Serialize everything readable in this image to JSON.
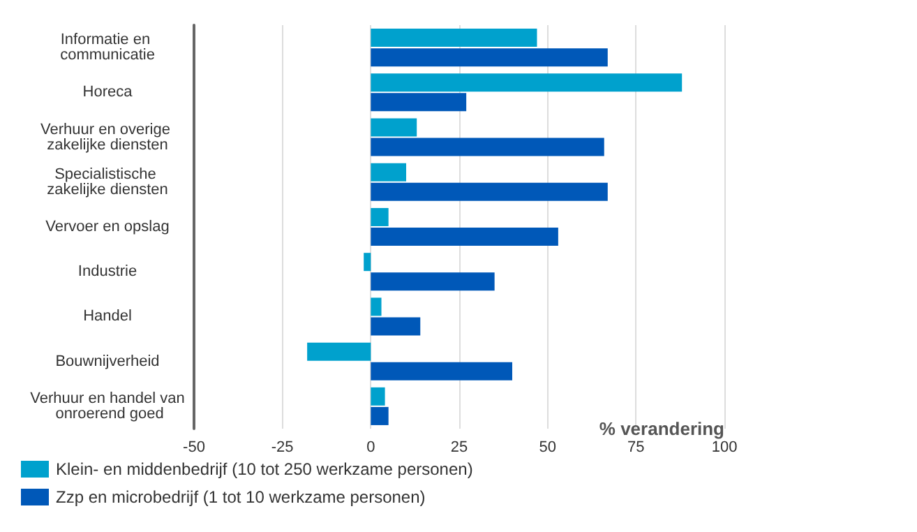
{
  "chart_data": {
    "type": "bar",
    "orientation": "horizontal",
    "xlabel": "% verandering",
    "categories": [
      "Informatie en communicatie",
      "Horeca",
      "Verhuur en overige zakelijke diensten",
      "Specialistische zakelijke diensten",
      "Vervoer en opslag",
      "Industrie",
      "Handel",
      "Bouwnijverheid",
      "Verhuur en handel van onroerend goed"
    ],
    "series": [
      {
        "name": "Klein- en middenbedrijf (10 tot 250 werkzame personen)",
        "color": "#00a1cd",
        "values": [
          47,
          88,
          13,
          10,
          5,
          -2,
          3,
          -18,
          4
        ]
      },
      {
        "name": "Zzp en microbedrijf (1 tot 10 werkzame personen)",
        "color": "#0058b8",
        "values": [
          67,
          27,
          66,
          67,
          53,
          35,
          14,
          40,
          5
        ]
      }
    ],
    "xlim": [
      -50,
      100
    ],
    "xticks": [
      -50,
      -25,
      0,
      25,
      50,
      75,
      100
    ],
    "grid": "x",
    "legend": "bottom left"
  }
}
